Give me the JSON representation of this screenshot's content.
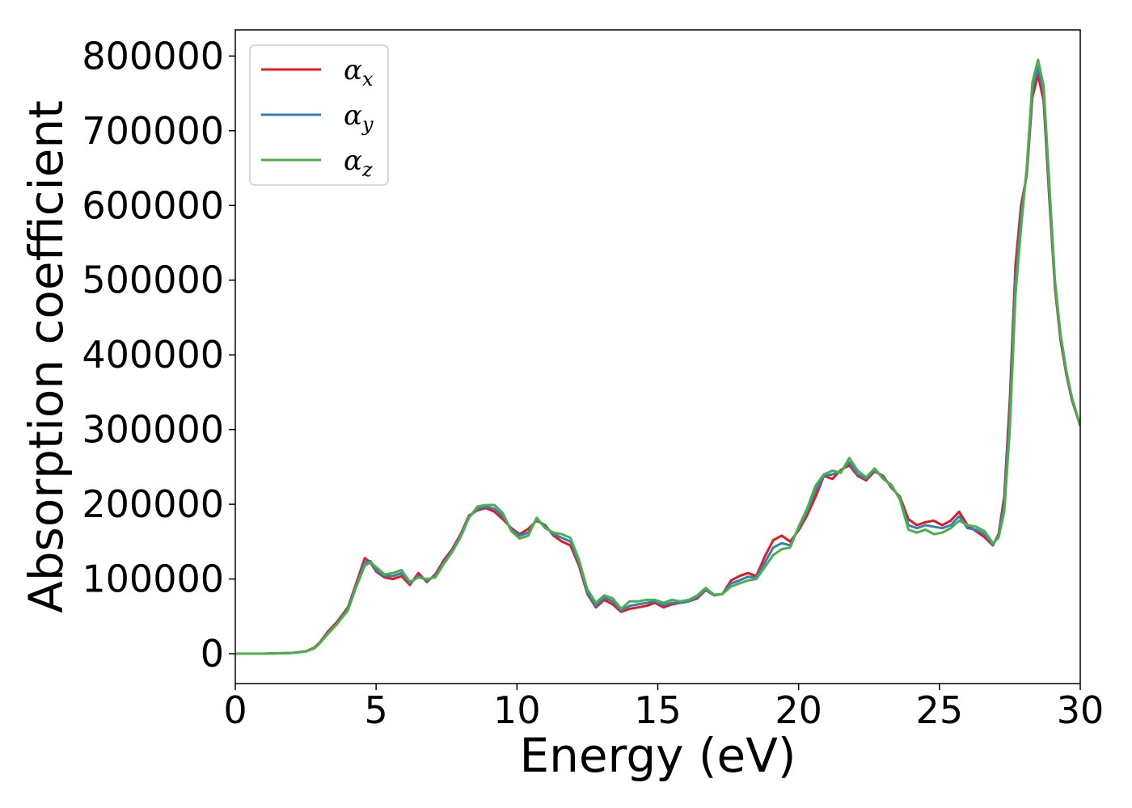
{
  "chart_data": {
    "type": "line",
    "title": "",
    "xlabel": "Energy (eV)",
    "ylabel": "Absorption coefficient",
    "xlim": [
      0,
      30
    ],
    "ylim": [
      -40000,
      835000
    ],
    "xticks": [
      0,
      5,
      10,
      15,
      20,
      25,
      30
    ],
    "xtick_labels": [
      "0",
      "5",
      "10",
      "15",
      "20",
      "25",
      "30"
    ],
    "yticks": [
      0,
      100000,
      200000,
      300000,
      400000,
      500000,
      600000,
      700000,
      800000
    ],
    "ytick_labels": [
      "0",
      "100000",
      "200000",
      "300000",
      "400000",
      "500000",
      "600000",
      "700000",
      "800000"
    ],
    "grid": false,
    "legend_position": "top-left",
    "x": [
      0,
      1,
      2,
      2.5,
      2.8,
      3.0,
      3.3,
      3.6,
      4.0,
      4.3,
      4.6,
      4.8,
      5.0,
      5.3,
      5.6,
      5.9,
      6.2,
      6.5,
      6.8,
      7.1,
      7.4,
      7.7,
      8.0,
      8.3,
      8.6,
      8.9,
      9.2,
      9.5,
      9.8,
      10.1,
      10.4,
      10.7,
      11.0,
      11.3,
      11.6,
      11.9,
      12.2,
      12.5,
      12.8,
      13.1,
      13.4,
      13.7,
      14.0,
      14.3,
      14.6,
      14.9,
      15.2,
      15.5,
      15.8,
      16.1,
      16.4,
      16.7,
      17.0,
      17.3,
      17.6,
      17.9,
      18.2,
      18.5,
      18.8,
      19.1,
      19.4,
      19.7,
      20.0,
      20.3,
      20.6,
      20.9,
      21.2,
      21.5,
      21.8,
      22.1,
      22.4,
      22.7,
      23.0,
      23.3,
      23.6,
      23.9,
      24.2,
      24.5,
      24.8,
      25.1,
      25.4,
      25.7,
      26.0,
      26.3,
      26.6,
      26.9,
      27.1,
      27.3,
      27.5,
      27.7,
      27.9,
      28.1,
      28.3,
      28.5,
      28.7,
      28.9,
      29.1,
      29.3,
      29.5,
      29.7,
      30.0
    ],
    "series": [
      {
        "name": "αx",
        "color": "#e41a1c",
        "values": [
          0,
          0,
          1000,
          3000,
          8000,
          15000,
          30000,
          42000,
          62000,
          95000,
          128000,
          122000,
          110000,
          102000,
          100000,
          104000,
          92000,
          108000,
          96000,
          106000,
          125000,
          140000,
          160000,
          185000,
          192000,
          195000,
          190000,
          180000,
          168000,
          160000,
          167000,
          178000,
          172000,
          158000,
          150000,
          145000,
          118000,
          80000,
          62000,
          72000,
          66000,
          56000,
          60000,
          62000,
          64000,
          68000,
          62000,
          66000,
          68000,
          70000,
          74000,
          85000,
          78000,
          80000,
          98000,
          104000,
          108000,
          104000,
          130000,
          152000,
          158000,
          150000,
          165000,
          185000,
          210000,
          238000,
          234000,
          246000,
          252000,
          238000,
          232000,
          244000,
          238000,
          222000,
          210000,
          180000,
          172000,
          176000,
          178000,
          172000,
          178000,
          190000,
          172000,
          164000,
          156000,
          145000,
          160000,
          210000,
          340000,
          520000,
          600000,
          640000,
          745000,
          775000,
          740000,
          610000,
          490000,
          420000,
          375000,
          340000,
          305000
        ]
      },
      {
        "name": "αy",
        "color": "#377eb8",
        "values": [
          0,
          0,
          1000,
          3000,
          7000,
          14000,
          28000,
          40000,
          60000,
          92000,
          122000,
          124000,
          112000,
          104000,
          104000,
          108000,
          94000,
          104000,
          98000,
          104000,
          122000,
          138000,
          158000,
          183000,
          194000,
          197000,
          194000,
          184000,
          166000,
          158000,
          162000,
          180000,
          170000,
          160000,
          155000,
          150000,
          122000,
          82000,
          64000,
          75000,
          70000,
          58000,
          64000,
          66000,
          68000,
          70000,
          65000,
          68000,
          68000,
          70000,
          76000,
          86000,
          78000,
          80000,
          94000,
          98000,
          103000,
          102000,
          122000,
          142000,
          148000,
          145000,
          168000,
          190000,
          218000,
          238000,
          240000,
          244000,
          256000,
          240000,
          234000,
          246000,
          236000,
          224000,
          208000,
          172000,
          168000,
          172000,
          170000,
          168000,
          172000,
          184000,
          168000,
          166000,
          160000,
          146000,
          158000,
          200000,
          320000,
          500000,
          585000,
          645000,
          755000,
          785000,
          750000,
          620000,
          495000,
          425000,
          378000,
          342000,
          305000
        ]
      },
      {
        "name": "αz",
        "color": "#4daf4a",
        "values": [
          0,
          0,
          1000,
          3000,
          7000,
          14000,
          27000,
          39000,
          58000,
          90000,
          118000,
          122000,
          116000,
          106000,
          108000,
          112000,
          96000,
          102000,
          100000,
          102000,
          120000,
          136000,
          156000,
          182000,
          197000,
          199000,
          199000,
          188000,
          164000,
          154000,
          158000,
          182000,
          168000,
          162000,
          160000,
          155000,
          126000,
          86000,
          68000,
          78000,
          74000,
          60000,
          70000,
          70000,
          72000,
          72000,
          68000,
          72000,
          70000,
          72000,
          78000,
          88000,
          79000,
          80000,
          90000,
          94000,
          98000,
          100000,
          116000,
          132000,
          140000,
          142000,
          170000,
          194000,
          225000,
          240000,
          245000,
          242000,
          262000,
          245000,
          236000,
          248000,
          234000,
          226000,
          206000,
          166000,
          162000,
          166000,
          160000,
          162000,
          168000,
          178000,
          172000,
          170000,
          164000,
          148000,
          155000,
          190000,
          300000,
          480000,
          570000,
          650000,
          765000,
          795000,
          760000,
          630000,
          500000,
          428000,
          380000,
          344000,
          305000
        ]
      }
    ]
  },
  "legend": {
    "items": [
      {
        "symbol": "α",
        "sub": "x",
        "color": "#e41a1c"
      },
      {
        "symbol": "α",
        "sub": "y",
        "color": "#377eb8"
      },
      {
        "symbol": "α",
        "sub": "z",
        "color": "#4daf4a"
      }
    ]
  }
}
